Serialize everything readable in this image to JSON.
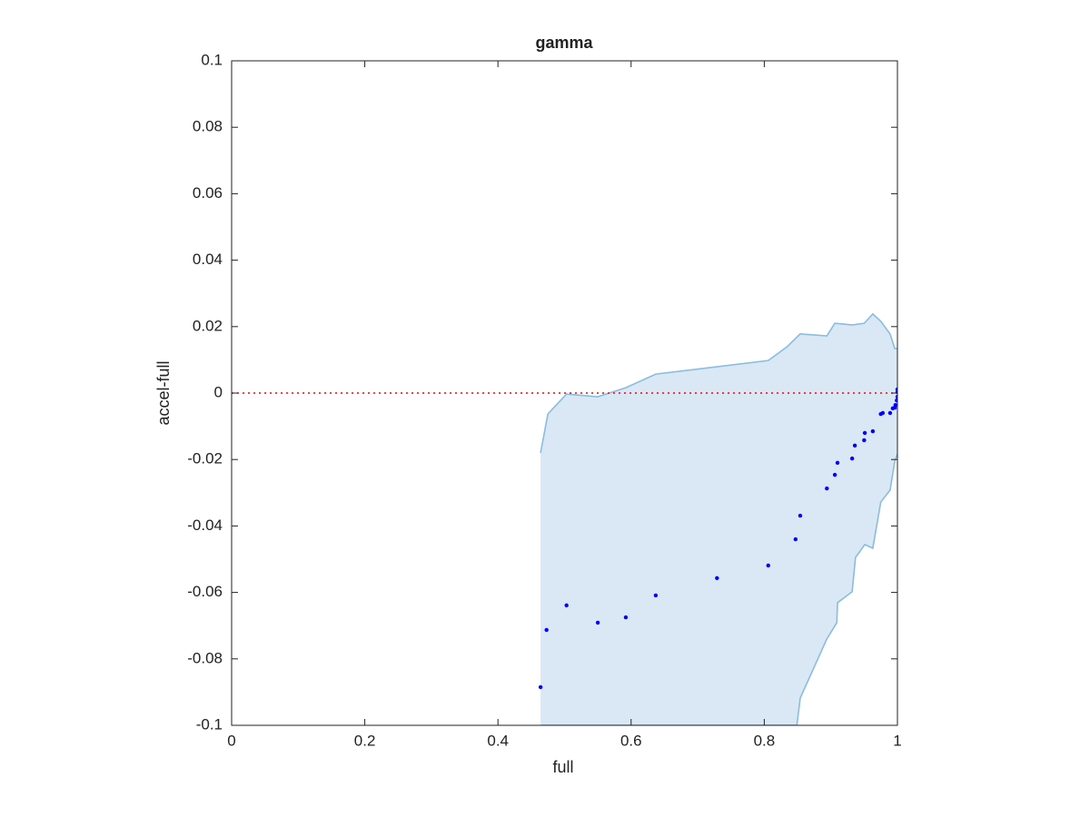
{
  "chart_data": {
    "type": "scatter",
    "title": "gamma",
    "x_label": "full",
    "y_label": "accel-full",
    "xlim": [
      0,
      1
    ],
    "ylim": [
      -0.1,
      0.1
    ],
    "xticks": [
      0,
      0.2,
      0.4,
      0.6,
      0.8,
      1
    ],
    "yticks": [
      -0.1,
      -0.08,
      -0.06,
      -0.04,
      -0.02,
      0,
      0.02,
      0.04,
      0.06,
      0.08,
      0.1
    ],
    "reference_line": {
      "y": 0,
      "color": "#ff0000"
    },
    "band": {
      "color": "#d9e8f4",
      "edge_color": "#88bde0",
      "upper": {
        "x": [
          0.464,
          0.475,
          0.503,
          0.55,
          0.592,
          0.637,
          0.806,
          0.834,
          0.854,
          0.894,
          0.906,
          0.932,
          0.95,
          0.963,
          0.975,
          0.989,
          0.996,
          1.0
        ],
        "y": [
          -0.018,
          -0.0063,
          -0.0003,
          -0.0011,
          0.0016,
          0.0057,
          0.0098,
          0.0139,
          0.0178,
          0.0172,
          0.021,
          0.0205,
          0.021,
          0.0238,
          0.0216,
          0.0178,
          0.0134,
          0.0134
        ]
      },
      "lower": {
        "x": [
          0.464,
          0.849,
          0.854,
          0.894,
          0.909,
          0.91,
          0.932,
          0.937,
          0.951,
          0.963,
          0.975,
          0.989,
          0.996,
          1.0
        ],
        "y": [
          -0.1,
          -0.1,
          -0.0918,
          -0.074,
          -0.0691,
          -0.0631,
          -0.0598,
          -0.0495,
          -0.0456,
          -0.0467,
          -0.0328,
          -0.0292,
          -0.0205,
          -0.0183
        ]
      }
    },
    "points": {
      "color": "#0000ff",
      "x": [
        0.464,
        0.473,
        0.503,
        0.55,
        0.592,
        0.637,
        0.729,
        0.806,
        0.847,
        0.854,
        0.894,
        0.906,
        0.91,
        0.932,
        0.936,
        0.95,
        0.951,
        0.963,
        0.975,
        0.978,
        0.989,
        0.993,
        0.996,
        0.997,
        0.999,
        1.0,
        1.0,
        1.0
      ],
      "y": [
        -0.0885,
        -0.0713,
        -0.0639,
        -0.0691,
        -0.0675,
        -0.0609,
        -0.0557,
        -0.0519,
        -0.044,
        -0.0369,
        -0.0287,
        -0.0246,
        -0.021,
        -0.0197,
        -0.0158,
        -0.0142,
        -0.012,
        -0.0115,
        -0.0063,
        -0.006,
        -0.006,
        -0.0046,
        -0.0044,
        -0.0036,
        -0.0022,
        -0.0011,
        0.0003,
        0.0011
      ]
    }
  }
}
